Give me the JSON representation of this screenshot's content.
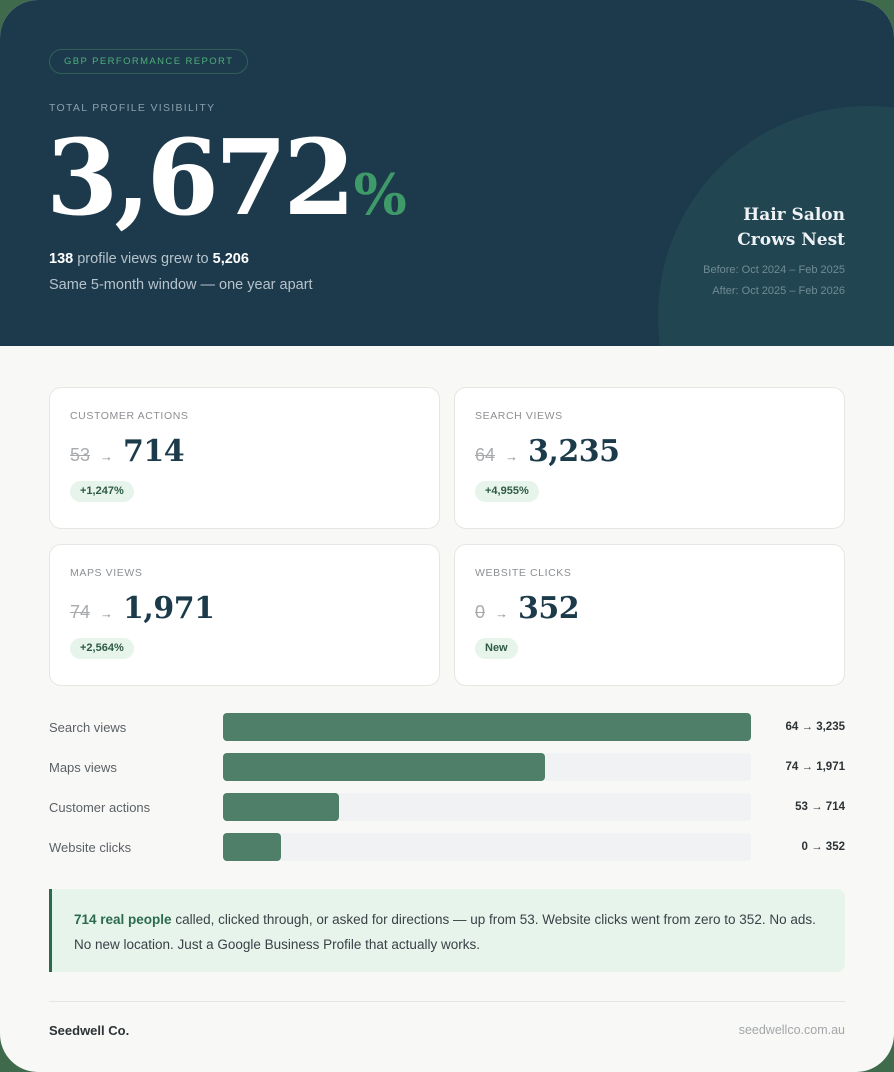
{
  "header": {
    "badge": "GBP PERFORMANCE REPORT",
    "kicker": "TOTAL PROFILE VISIBILITY",
    "headline_value": "3,672",
    "headline_unit": "%",
    "summary": {
      "before": "138",
      "middle": " profile views grew to ",
      "after": "5,206"
    },
    "window_note": "Same 5-month window — one year apart",
    "client": {
      "line1": "Hair Salon",
      "line2": "Crows Nest"
    },
    "periods": {
      "before": "Before: Oct 2024 – Feb 2025",
      "after": "After: Oct 2025 – Feb 2026"
    }
  },
  "cards": [
    {
      "label": "CUSTOMER ACTIONS",
      "old": "53",
      "arrow": "→",
      "new": "714",
      "chip": "+1,247%"
    },
    {
      "label": "SEARCH VIEWS",
      "old": "64",
      "arrow": "→",
      "new": "3,235",
      "chip": "+4,955%"
    },
    {
      "label": "MAPS VIEWS",
      "old": "74",
      "arrow": "→",
      "new": "1,971",
      "chip": "+2,564%"
    },
    {
      "label": "WEBSITE CLICKS",
      "old": "0",
      "arrow": "→",
      "new": "352",
      "chip": "New"
    }
  ],
  "bars": [
    {
      "label": "Search views",
      "value_text": "64 → 3,235",
      "fill_pct": 100
    },
    {
      "label": "Maps views",
      "value_text": "74 → 1,971",
      "fill_pct": 61
    },
    {
      "label": "Customer actions",
      "value_text": "53 → 714",
      "fill_pct": 22
    },
    {
      "label": "Website clicks",
      "value_text": "0 → 352",
      "fill_pct": 11
    }
  ],
  "chart_data": {
    "type": "bar",
    "orientation": "horizontal",
    "title": "",
    "categories": [
      "Search views",
      "Maps views",
      "Customer actions",
      "Website clicks"
    ],
    "series": [
      {
        "name": "Before (Oct 2024 – Feb 2025)",
        "values": [
          64,
          74,
          53,
          0
        ]
      },
      {
        "name": "After (Oct 2025 – Feb 2026)",
        "values": [
          3235,
          1971,
          714,
          352
        ]
      }
    ],
    "bar_lengths_represent": "After",
    "xlim": [
      0,
      3235
    ],
    "grid": false,
    "legend": "none",
    "value_labels": [
      "64 → 3,235",
      "74 → 1,971",
      "53 → 714",
      "0 → 352"
    ]
  },
  "callout": {
    "bold": "714 real people",
    "text": " called, clicked through, or asked for directions — up from 53. Website clicks went from zero to 352. No ads. No new location. Just a Google Business Profile that actually works."
  },
  "footer": {
    "brand": "Seedwell Co.",
    "site": "seedwellco.com.au"
  },
  "colors": {
    "header_bg": "#1d3a4c",
    "accent_green": "#3f9a6a",
    "bar_fill": "#4f7e69",
    "chip_bg": "#e6f4ec",
    "page_bg": "#f8f8f6"
  }
}
